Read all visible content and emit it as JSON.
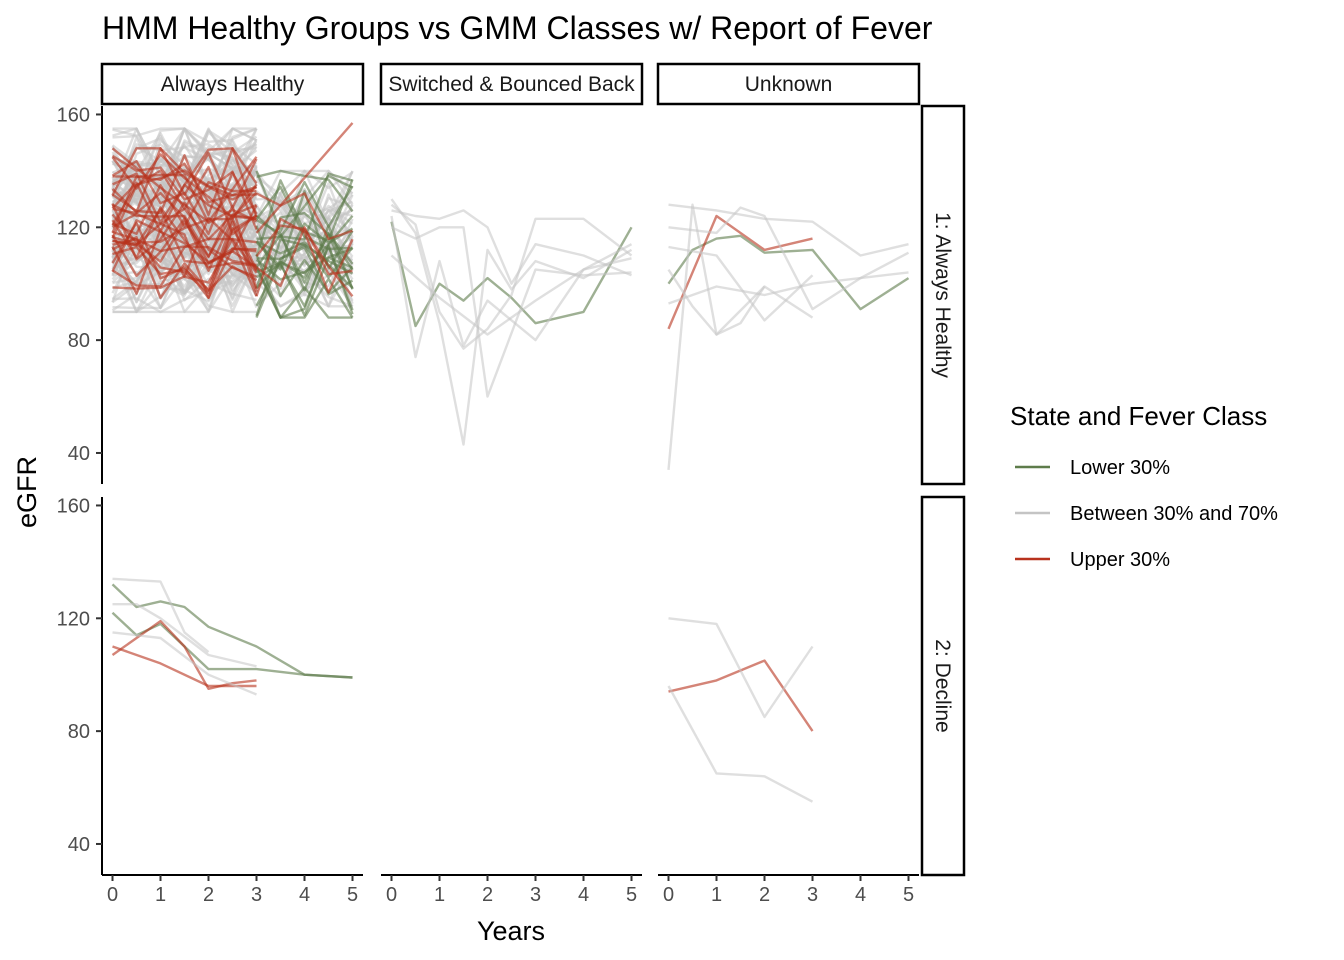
{
  "chart_data": {
    "type": "line",
    "title": "HMM Healthy Groups vs GMM Classes w/ Report of Fever",
    "xlabel": "Years",
    "ylabel": "eGFR",
    "xlim": [
      0,
      5
    ],
    "ylim": [
      29,
      163
    ],
    "x_ticks": [
      "0",
      "1",
      "2",
      "3",
      "4",
      "5"
    ],
    "y_ticks": [
      "40",
      "80",
      "120",
      "160"
    ],
    "column_facets": [
      "Always Healthy",
      "Switched & Bounced Back",
      "Unknown"
    ],
    "row_facets": [
      "1: Always Healthy",
      "2: Decline"
    ],
    "grid": false,
    "legend": {
      "title": "State and Fever Class",
      "position": "right",
      "entries": [
        {
          "label": "Lower 30%",
          "color": "#5e7c4b"
        },
        {
          "label": "Between 30% and 70%",
          "color": "#c4c4c4"
        },
        {
          "label": "Upper 30%",
          "color": "#b8321d"
        }
      ]
    },
    "colors": {
      "lower": "#5e7c4b",
      "between": "#c4c4c4",
      "upper": "#b8321d"
    },
    "panels": [
      {
        "row": 0,
        "col": 1,
        "series": [
          {
            "class": "lower",
            "x": [
              0,
              0.5,
              1,
              1.5,
              2,
              2.5,
              3,
              4,
              5
            ],
            "y": [
              122,
              85,
              100,
              94,
              102,
              95,
              86,
              90,
              120
            ]
          },
          {
            "class": "between",
            "x": [
              0,
              0.5,
              1,
              1.5,
              2,
              2.5,
              3,
              4,
              5
            ],
            "y": [
              128,
              121,
              90,
              77,
              84,
              96,
              123,
              123,
              110
            ]
          },
          {
            "class": "between",
            "x": [
              0,
              0.5,
              1,
              1.5,
              2,
              3,
              4,
              5
            ],
            "y": [
              124,
              74,
              108,
              78,
              94,
              80,
              105,
              114
            ]
          },
          {
            "class": "between",
            "x": [
              0,
              0.5,
              1,
              1.5,
              2,
              2.5,
              3,
              4,
              5
            ],
            "y": [
              126,
              124,
              123,
              126,
              120,
              100,
              114,
              110,
              103
            ]
          },
          {
            "class": "between",
            "x": [
              0,
              0.5,
              1,
              1.5,
              2,
              2.5,
              3,
              4,
              5
            ],
            "y": [
              130,
              118,
              86,
              43,
              112,
              98,
              108,
              102,
              112
            ]
          },
          {
            "class": "between",
            "x": [
              0,
              0.5,
              1,
              1.5,
              2,
              3,
              4,
              5
            ],
            "y": [
              120,
              116,
              120,
              120,
              60,
              105,
              103,
              104
            ]
          },
          {
            "class": "between",
            "x": [
              0,
              1,
              2,
              3,
              4,
              5
            ],
            "y": [
              110,
              95,
              82,
              94,
              105,
              109
            ]
          }
        ]
      },
      {
        "row": 0,
        "col": 2,
        "series": [
          {
            "class": "lower",
            "x": [
              0,
              0.5,
              1,
              1.5,
              2,
              3,
              4,
              5
            ],
            "y": [
              100,
              112,
              116,
              117,
              111,
              112,
              91,
              102
            ]
          },
          {
            "class": "upper",
            "x": [
              0,
              1,
              2,
              3
            ],
            "y": [
              84,
              124,
              112,
              116
            ]
          },
          {
            "class": "between",
            "x": [
              0,
              0.5,
              1,
              2,
              3
            ],
            "y": [
              34,
              128,
              82,
              99,
              88
            ]
          },
          {
            "class": "between",
            "x": [
              0,
              1,
              2,
              3,
              4,
              5
            ],
            "y": [
              128,
              126,
              123,
              122,
              110,
              114
            ]
          },
          {
            "class": "between",
            "x": [
              0,
              1,
              1.5,
              2,
              3,
              4,
              5
            ],
            "y": [
              120,
              118,
              127,
              124,
              91,
              102,
              104
            ]
          },
          {
            "class": "between",
            "x": [
              0,
              1,
              2,
              3
            ],
            "y": [
              113,
              110,
              87,
              103
            ]
          },
          {
            "class": "between",
            "x": [
              0,
              1,
              2,
              3,
              4,
              5
            ],
            "y": [
              93,
              99,
              96,
              100,
              102,
              111
            ]
          },
          {
            "class": "between",
            "x": [
              0,
              0.5,
              1,
              1.5,
              2
            ],
            "y": [
              105,
              92,
              82,
              86,
              99
            ]
          }
        ]
      },
      {
        "row": 1,
        "col": 0,
        "series": [
          {
            "class": "lower",
            "x": [
              0,
              0.5,
              1,
              1.5,
              2,
              3,
              4,
              5
            ],
            "y": [
              132,
              124,
              126,
              124,
              117,
              110,
              100,
              99
            ]
          },
          {
            "class": "lower",
            "x": [
              0,
              0.5,
              1,
              1.5,
              2,
              3,
              4,
              5
            ],
            "y": [
              122,
              114,
              118,
              110,
              102,
              102,
              100,
              99
            ]
          },
          {
            "class": "upper",
            "x": [
              0,
              1,
              1.5,
              2,
              2.5,
              3
            ],
            "y": [
              107,
              119,
              110,
              95,
              97,
              98
            ]
          },
          {
            "class": "upper",
            "x": [
              0,
              1,
              2,
              3
            ],
            "y": [
              110,
              104,
              96,
              96
            ]
          },
          {
            "class": "between",
            "x": [
              0,
              1,
              1.5,
              2
            ],
            "y": [
              134,
              133,
              115,
              108
            ]
          },
          {
            "class": "between",
            "x": [
              0,
              0.5,
              1,
              2,
              3
            ],
            "y": [
              125,
              125,
              120,
              107,
              103
            ]
          },
          {
            "class": "between",
            "x": [
              0,
              1,
              2,
              3
            ],
            "y": [
              115,
              113,
              100,
              93
            ]
          }
        ]
      },
      {
        "row": 1,
        "col": 2,
        "series": [
          {
            "class": "upper",
            "x": [
              0,
              1,
              2,
              3
            ],
            "y": [
              94,
              98,
              105,
              80
            ]
          },
          {
            "class": "between",
            "x": [
              0,
              1,
              2,
              3
            ],
            "y": [
              120,
              118,
              85,
              110
            ]
          },
          {
            "class": "between",
            "x": [
              0,
              1,
              2,
              3
            ],
            "y": [
              96,
              65,
              64,
              55
            ]
          }
        ]
      }
    ],
    "dense_panel": {
      "row": 0,
      "col": 0,
      "description_counts": {
        "between": 120,
        "upper": 32,
        "lower": 24
      },
      "early_x": [
        0,
        0.5,
        1,
        1.5,
        2,
        2.5,
        3
      ],
      "late_x": [
        3,
        3.5,
        4,
        4.5,
        5
      ],
      "range_between": [
        90,
        155
      ],
      "range_upper": [
        95,
        148
      ],
      "range_lower": [
        88,
        140
      ],
      "highlight_series": [
        {
          "class": "upper",
          "x": [
            3,
            5
          ],
          "y": [
            118,
            157
          ]
        },
        {
          "class": "upper",
          "x": [
            0,
            1,
            2,
            3
          ],
          "y": [
            148,
            134,
            122,
            145
          ]
        }
      ]
    }
  }
}
